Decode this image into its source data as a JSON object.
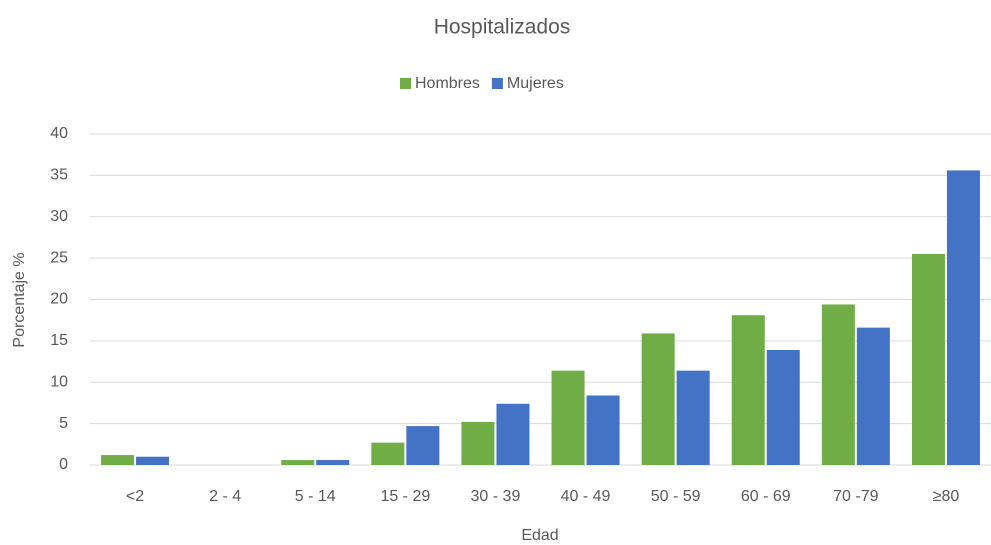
{
  "chart_data": {
    "type": "bar",
    "title": "Hospitalizados",
    "x_label": "Edad",
    "y_label": "Porcentaje %",
    "categories": [
      "<2",
      "2 - 4",
      "5 - 14",
      "15 - 29",
      "30 - 39",
      "40 - 49",
      "50 - 59",
      "60 - 69",
      "70 -79",
      "≥80"
    ],
    "series": [
      {
        "name": "Hombres",
        "color": "#70ad47",
        "values": [
          1.2,
          0,
          0.6,
          2.7,
          5.2,
          11.4,
          15.9,
          18.1,
          19.4,
          25.5
        ]
      },
      {
        "name": "Mujeres",
        "color": "#4472c4",
        "values": [
          1.0,
          0,
          0.6,
          4.7,
          7.4,
          8.4,
          11.4,
          13.9,
          16.6,
          35.6
        ]
      }
    ],
    "ylim": [
      0,
      40
    ],
    "yticks": [
      0,
      5,
      10,
      15,
      20,
      25,
      30,
      35,
      40
    ],
    "grid": true,
    "legend": "top"
  }
}
